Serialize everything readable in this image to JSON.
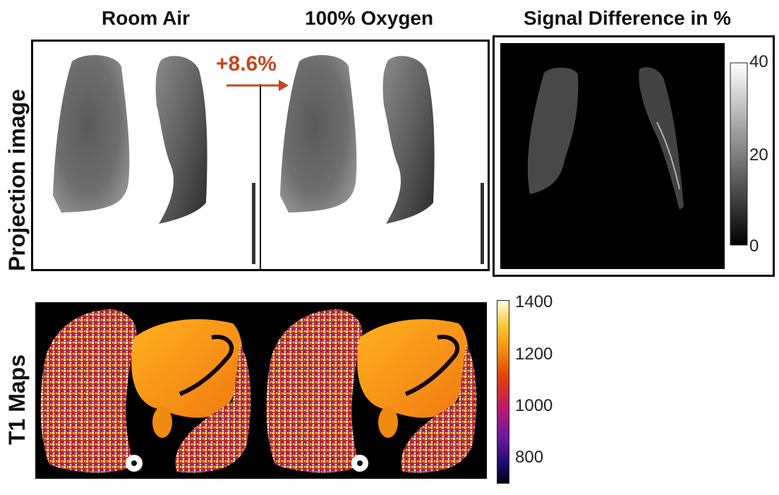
{
  "columns": {
    "room_air": "Room Air",
    "oxygen": "100% Oxygen",
    "signal_diff": "Signal Difference in %"
  },
  "rows": {
    "projection": "Projection image",
    "t1": "T1 Maps"
  },
  "annotation": {
    "change": "+8.6%",
    "color": "#c8451e"
  },
  "diff_colorbar": {
    "ticks": [
      "40",
      "20",
      "0"
    ],
    "range": [
      0,
      40
    ]
  },
  "t1_colorbar": {
    "ticks": [
      "1400",
      "1200",
      "1000",
      "800"
    ],
    "range": [
      700,
      1420
    ]
  }
}
